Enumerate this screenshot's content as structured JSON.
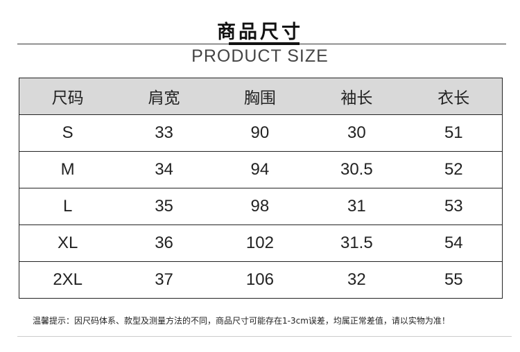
{
  "title": "商品尺寸",
  "subtitle": "PRODUCT SIZE",
  "table": {
    "headers": [
      "尺码",
      "肩宽",
      "胸围",
      "袖长",
      "衣长"
    ],
    "rows": [
      [
        "S",
        "33",
        "90",
        "30",
        "51"
      ],
      [
        "M",
        "34",
        "94",
        "30.5",
        "52"
      ],
      [
        "L",
        "35",
        "98",
        "31",
        "53"
      ],
      [
        "XL",
        "36",
        "102",
        "31.5",
        "54"
      ],
      [
        "2XL",
        "37",
        "106",
        "32",
        "55"
      ]
    ]
  },
  "note": "温馨提示：因尺码体系、款型及测量方法的不同，商品尺寸可能存在1-3cm误差，均属正常差值，请以实物为准！"
}
